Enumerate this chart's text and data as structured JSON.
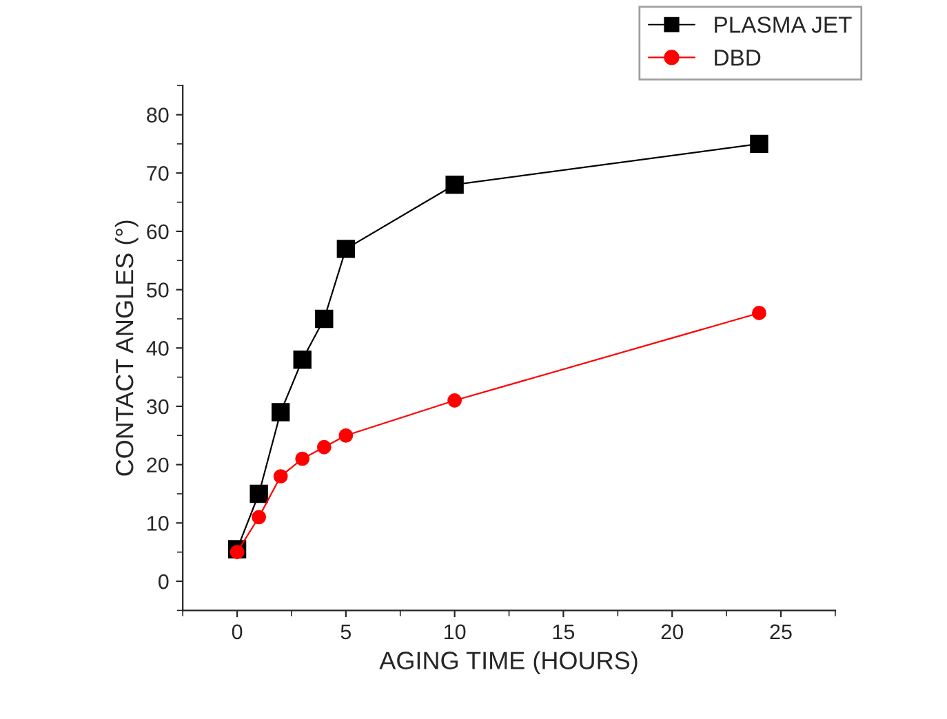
{
  "chart_data": {
    "type": "line",
    "xlabel": "AGING TIME (HOURS)",
    "ylabel": "CONTACT ANGLES (°)",
    "x": [
      0,
      1,
      2,
      3,
      4,
      5,
      10,
      24
    ],
    "series": [
      {
        "name": "PLASMA JET",
        "color": "#000000",
        "marker": "square",
        "values": [
          5.5,
          15,
          29,
          38,
          45,
          57,
          68,
          75
        ]
      },
      {
        "name": "DBD",
        "color": "#ff0000",
        "marker": "circle",
        "values": [
          5,
          11,
          18,
          21,
          23,
          25,
          31,
          46
        ]
      }
    ],
    "xlim": [
      -2.5,
      27.5
    ],
    "xticks": [
      0,
      5,
      10,
      15,
      20,
      25
    ],
    "ylim": [
      -5,
      85
    ],
    "yticks": [
      0,
      10,
      20,
      30,
      40,
      50,
      60,
      70,
      80
    ],
    "grid": false,
    "legend": "top right",
    "line_style": "solid"
  }
}
